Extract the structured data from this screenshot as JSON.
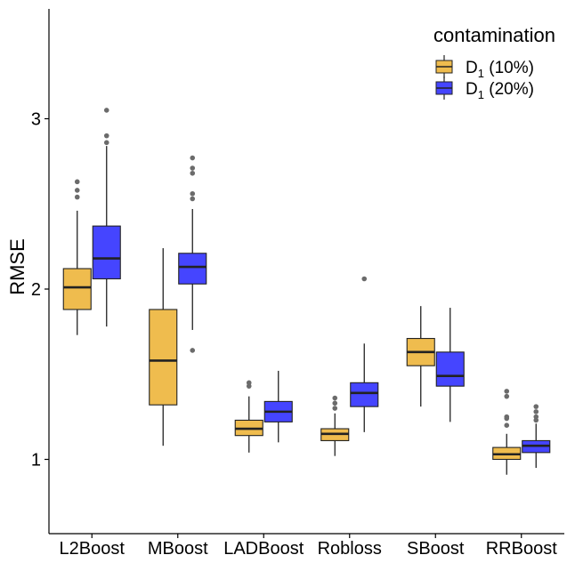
{
  "chart_data": {
    "type": "boxplot",
    "title": "",
    "xlabel": "",
    "ylabel": "RMSE",
    "ylim": [
      0.58,
      3.64
    ],
    "yticks": [
      1,
      2,
      3
    ],
    "ytick_labels": [
      "1",
      "2",
      "3"
    ],
    "categories": [
      "L2Boost",
      "MBoost",
      "LADBoost",
      "Robloss",
      "SBoost",
      "RRBoost"
    ],
    "legend": {
      "title": "contamination",
      "position": "top-right",
      "entries": [
        {
          "base": "D",
          "sub": "1",
          "suffix": " (10%)",
          "color": "#EFBC4E"
        },
        {
          "base": "D",
          "sub": "1",
          "suffix": " (20%)",
          "color": "#4545FF"
        }
      ]
    },
    "series": [
      {
        "name": "D1 (10%)",
        "color": "#EFBC4E",
        "boxes": [
          {
            "min": 1.73,
            "q1": 1.88,
            "median": 2.01,
            "q3": 2.12,
            "max": 2.46,
            "outliers": [
              2.54,
              2.58,
              2.63
            ]
          },
          {
            "min": 1.08,
            "q1": 1.32,
            "median": 1.58,
            "q3": 1.88,
            "max": 2.24,
            "outliers": []
          },
          {
            "min": 1.04,
            "q1": 1.14,
            "median": 1.18,
            "q3": 1.23,
            "max": 1.37,
            "outliers": [
              1.43,
              1.45
            ]
          },
          {
            "min": 1.02,
            "q1": 1.11,
            "median": 1.15,
            "q3": 1.18,
            "max": 1.27,
            "outliers": [
              1.3,
              1.33,
              1.36
            ]
          },
          {
            "min": 1.31,
            "q1": 1.55,
            "median": 1.63,
            "q3": 1.71,
            "max": 1.9,
            "outliers": []
          },
          {
            "min": 0.91,
            "q1": 1.0,
            "median": 1.03,
            "q3": 1.07,
            "max": 1.15,
            "outliers": [
              1.2,
              1.24,
              1.25,
              1.37,
              1.4
            ]
          }
        ]
      },
      {
        "name": "D1 (20%)",
        "color": "#4545FF",
        "boxes": [
          {
            "min": 1.78,
            "q1": 2.06,
            "median": 2.18,
            "q3": 2.37,
            "max": 2.84,
            "outliers": [
              2.86,
              2.9,
              3.05
            ]
          },
          {
            "min": 1.76,
            "q1": 2.03,
            "median": 2.13,
            "q3": 2.21,
            "max": 2.47,
            "outliers": [
              1.64,
              2.53,
              2.56,
              2.68,
              2.71,
              2.77
            ]
          },
          {
            "min": 1.1,
            "q1": 1.22,
            "median": 1.28,
            "q3": 1.34,
            "max": 1.52,
            "outliers": []
          },
          {
            "min": 1.16,
            "q1": 1.31,
            "median": 1.39,
            "q3": 1.45,
            "max": 1.68,
            "outliers": [
              2.06
            ]
          },
          {
            "min": 1.22,
            "q1": 1.43,
            "median": 1.49,
            "q3": 1.63,
            "max": 1.89,
            "outliers": []
          },
          {
            "min": 0.95,
            "q1": 1.04,
            "median": 1.08,
            "q3": 1.11,
            "max": 1.21,
            "outliers": [
              1.23,
              1.25,
              1.28,
              1.31
            ]
          }
        ]
      }
    ]
  }
}
